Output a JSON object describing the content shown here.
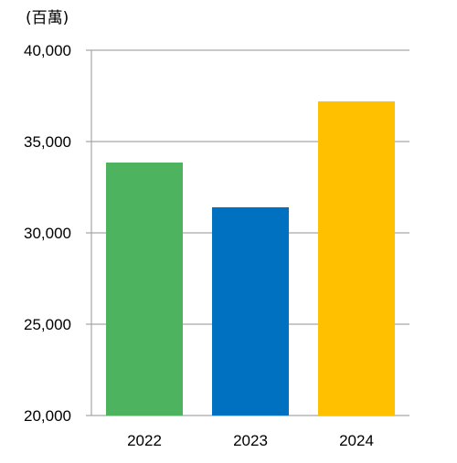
{
  "chart_data": {
    "type": "bar",
    "unit_label": "(百萬)",
    "categories": [
      "2022",
      "2023",
      "2024"
    ],
    "values": [
      33850,
      31400,
      37200
    ],
    "colors": [
      "#4db35e",
      "#0070c0",
      "#ffc000"
    ],
    "ylim": [
      20000,
      40000
    ],
    "yticks": [
      20000,
      25000,
      30000,
      35000,
      40000
    ],
    "ytick_labels": [
      "20,000",
      "25,000",
      "30,000",
      "35,000",
      "40,000"
    ],
    "grid": true,
    "legend": false
  }
}
